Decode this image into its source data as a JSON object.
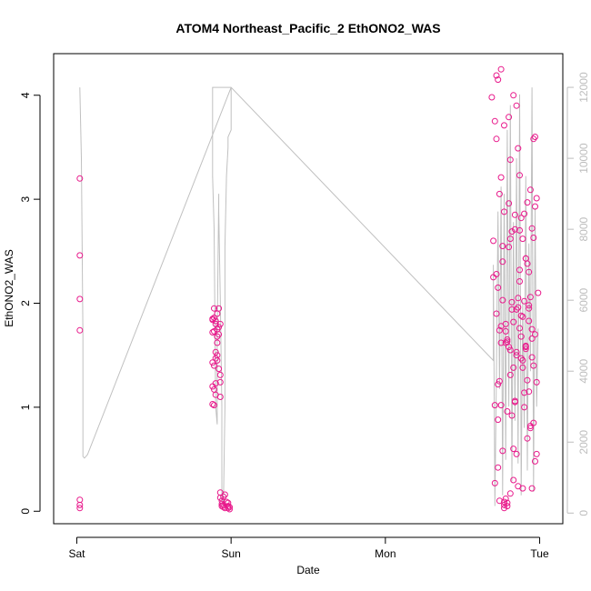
{
  "chart_data": {
    "type": "scatter",
    "title": "ATOM4 Northeast_Pacific_2 EthONO2_WAS",
    "xlabel": "Date",
    "ylabel": "EthONO2_WAS",
    "x_ticks": [
      {
        "value": 0,
        "label": "Sat"
      },
      {
        "value": 1,
        "label": "Sun"
      },
      {
        "value": 2,
        "label": "Mon"
      },
      {
        "value": 3,
        "label": "Tue"
      }
    ],
    "xlim": [
      -0.15,
      3.15
    ],
    "ylim": [
      -0.12,
      4.4
    ],
    "y_ticks": [
      0,
      1,
      2,
      3,
      4
    ],
    "y2_ticks": [
      0,
      2000,
      4000,
      6000,
      8000,
      10000,
      12000
    ],
    "y2lim": [
      -300,
      12950
    ],
    "grid": false,
    "colors": {
      "points": "#e8198b",
      "line": "#c0c0c0",
      "axis": "#000000",
      "right_axis": "#bdbdbd"
    },
    "series": [
      {
        "type": "scatter",
        "x": [
          0.02,
          0.02,
          0.02,
          0.02,
          0.02,
          0.02,
          0.02,
          0.88,
          0.88,
          0.88,
          0.88,
          0.88,
          0.88,
          0.89,
          0.89,
          0.89,
          0.89,
          0.89,
          0.89,
          0.9,
          0.9,
          0.9,
          0.9,
          0.9,
          0.9,
          0.91,
          0.91,
          0.91,
          0.91,
          0.91,
          0.91,
          0.92,
          0.92,
          0.92,
          0.92,
          0.93,
          0.93,
          0.93,
          0.93,
          0.93,
          0.93,
          0.94,
          0.94,
          0.94,
          0.95,
          0.95,
          0.95,
          0.96,
          0.96,
          0.97,
          0.98,
          0.98,
          0.98,
          0.99,
          0.99,
          2.69,
          2.7,
          2.7,
          2.71,
          2.71,
          2.72,
          2.72,
          2.73,
          2.73,
          2.74,
          2.74,
          2.75,
          2.75,
          2.76,
          2.76,
          2.77,
          2.77,
          2.78,
          2.78,
          2.79,
          2.79,
          2.8,
          2.8,
          2.81,
          2.81,
          2.82,
          2.82,
          2.83,
          2.83,
          2.84,
          2.84,
          2.85,
          2.85,
          2.86,
          2.86,
          2.87,
          2.87,
          2.88,
          2.88,
          2.89,
          2.89,
          2.9,
          2.9,
          2.91,
          2.91,
          2.92,
          2.92,
          2.93,
          2.93,
          2.94,
          2.94,
          2.95,
          2.95,
          2.96,
          2.96,
          2.97,
          2.97,
          2.98,
          2.98,
          2.99,
          2.72,
          2.73,
          2.74,
          2.75,
          2.76,
          2.77,
          2.78,
          2.79,
          2.8,
          2.81,
          2.82,
          2.83,
          2.84,
          2.85,
          2.86,
          2.87,
          2.88,
          2.89,
          2.9,
          2.91,
          2.92,
          2.93,
          2.94,
          2.95,
          2.96,
          2.97,
          2.98,
          2.71,
          2.73,
          2.75,
          2.77,
          2.79,
          2.81,
          2.83,
          2.85,
          2.87,
          2.89,
          2.91,
          2.93,
          2.95,
          2.97,
          2.72,
          2.74,
          2.76,
          2.78,
          2.8,
          2.82,
          2.84,
          2.86,
          2.88,
          2.9,
          2.92,
          2.94,
          2.96,
          2.73,
          2.75,
          2.77,
          2.79,
          2.81,
          2.83,
          2.85,
          2.87,
          2.89,
          2.91,
          2.93,
          2.95
        ],
        "y": [
          3.2,
          2.46,
          2.04,
          1.74,
          0.11,
          0.06,
          0.03,
          1.85,
          1.72,
          1.43,
          1.2,
          1.03,
          1.84,
          1.4,
          1.17,
          1.73,
          1.95,
          1.86,
          1.02,
          1.47,
          1.23,
          1.8,
          1.53,
          1.12,
          1.83,
          1.5,
          1.75,
          1.62,
          1.9,
          1.68,
          1.45,
          1.95,
          1.77,
          1.37,
          1.7,
          1.31,
          1.24,
          0.18,
          0.13,
          1.8,
          1.1,
          0.1,
          0.07,
          0.05,
          0.04,
          0.14,
          0.06,
          0.03,
          0.16,
          0.09,
          0.05,
          0.03,
          0.08,
          0.04,
          0.02,
          3.98,
          2.6,
          2.25,
          0.27,
          1.02,
          3.58,
          2.28,
          0.42,
          4.15,
          1.74,
          0.1,
          3.21,
          4.25,
          0.58,
          2.03,
          0.03,
          3.71,
          0.12,
          1.62,
          0.05,
          0.08,
          3.79,
          2.96,
          0.17,
          3.38,
          0.92,
          2.01,
          4.0,
          0.3,
          2.71,
          1.06,
          3.9,
          1.53,
          0.24,
          1.96,
          2.32,
          3.23,
          1.47,
          1.88,
          0.22,
          1.38,
          1.14,
          2.86,
          2.43,
          1.59,
          0.7,
          2.97,
          1.95,
          2.3,
          0.8,
          3.09,
          2.72,
          1.48,
          0.85,
          2.63,
          1.7,
          0.48,
          3.01,
          1.24,
          2.1,
          4.19,
          0.88,
          3.05,
          1.62,
          2.4,
          0.06,
          1.8,
          0.96,
          2.54,
          1.31,
          1.94,
          0.6,
          2.85,
          1.5,
          3.49,
          2.21,
          1.68,
          2.62,
          1.0,
          1.58,
          2.38,
          1.15,
          0.82,
          1.75,
          1.4,
          2.93,
          0.55,
          3.75,
          2.15,
          1.02,
          2.88,
          1.63,
          2.62,
          1.82,
          0.55,
          2.7,
          1.45,
          2.43,
          1.98,
          0.22,
          3.6,
          1.9,
          1.25,
          2.55,
          1.73,
          1.58,
          2.69,
          1.05,
          2.05,
          2.82,
          2.02,
          1.26,
          2.06,
          3.58,
          1.22,
          1.78,
          0.09,
          1.65,
          1.55,
          1.38,
          1.94,
          1.76,
          1.87,
          1.56,
          1.83,
          1.66
        ]
      },
      {
        "type": "line",
        "axis": "right",
        "x": [
          0.02,
          0.02,
          0.03,
          0.04,
          0.04,
          0.05,
          0.06,
          0.07,
          1.0,
          1.0,
          0.98,
          0.98,
          0.97,
          0.96,
          0.96,
          0.95,
          0.94,
          0.94,
          0.93,
          0.92,
          0.92,
          0.91,
          0.91,
          0.9,
          0.89,
          0.88,
          0.88,
          0.88,
          0.89,
          0.9,
          0.91,
          0.92,
          0.93,
          0.94,
          0.95,
          0.96,
          0.97,
          0.98,
          0.99,
          1.0,
          2.7,
          2.7,
          2.71,
          2.72,
          2.73,
          2.74,
          2.75,
          2.76,
          2.77,
          2.78,
          2.79,
          2.8,
          2.81,
          2.82,
          2.83,
          2.84,
          2.85,
          2.86,
          2.87,
          2.88,
          2.89,
          2.9,
          2.91,
          2.92,
          2.93,
          2.94,
          2.95,
          2.96,
          2.97,
          2.98,
          2.99
        ],
        "y": [
          12000,
          12000,
          10000,
          5000,
          1600,
          1550,
          1600,
          1650,
          12000,
          10800,
          10600,
          10300,
          9500,
          7500,
          3000,
          200,
          500,
          3000,
          6000,
          8500,
          9000,
          5000,
          2500,
          3000,
          8000,
          9500,
          12000,
          12000,
          12000,
          12000,
          12000,
          12000,
          12000,
          12000,
          12000,
          12000,
          12000,
          12000,
          12000,
          12000,
          4300,
          7000,
          200,
          4000,
          8500,
          3500,
          9200,
          500,
          9000,
          1500,
          10800,
          3000,
          11500,
          900,
          8200,
          2600,
          10000,
          1400,
          11800,
          500,
          6000,
          2400,
          9500,
          1200,
          7600,
          4000,
          12000,
          600,
          8600,
          3000,
          5200
        ]
      }
    ]
  }
}
